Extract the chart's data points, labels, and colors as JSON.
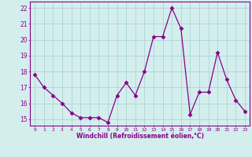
{
  "x": [
    0,
    1,
    2,
    3,
    4,
    5,
    6,
    7,
    8,
    9,
    10,
    11,
    12,
    13,
    14,
    15,
    16,
    17,
    18,
    19,
    20,
    21,
    22,
    23
  ],
  "y": [
    17.8,
    17.0,
    16.5,
    16.0,
    15.4,
    15.1,
    15.1,
    15.1,
    14.8,
    16.5,
    17.3,
    16.5,
    18.0,
    20.2,
    20.2,
    22.0,
    20.7,
    15.3,
    16.7,
    16.7,
    19.2,
    17.5,
    16.2,
    15.5
  ],
  "line_color": "#880088",
  "marker": "D",
  "marker_size": 2.5,
  "bg_color": "#d4eeee",
  "grid_color": "#aad4d4",
  "xlabel": "Windchill (Refroidissement éolien,°C)",
  "xlabel_color": "#880088",
  "xtick_labels": [
    "0",
    "1",
    "2",
    "3",
    "4",
    "5",
    "6",
    "7",
    "8",
    "9",
    "10",
    "11",
    "12",
    "13",
    "14",
    "15",
    "16",
    "17",
    "18",
    "19",
    "20",
    "21",
    "22",
    "23"
  ],
  "ytick_vals": [
    15,
    16,
    17,
    18,
    19,
    20,
    21,
    22
  ],
  "ylim": [
    14.6,
    22.4
  ],
  "xlim": [
    -0.5,
    23.5
  ],
  "tick_color": "#880088",
  "spine_color": "#880088",
  "figsize": [
    3.2,
    2.0
  ],
  "dpi": 100
}
